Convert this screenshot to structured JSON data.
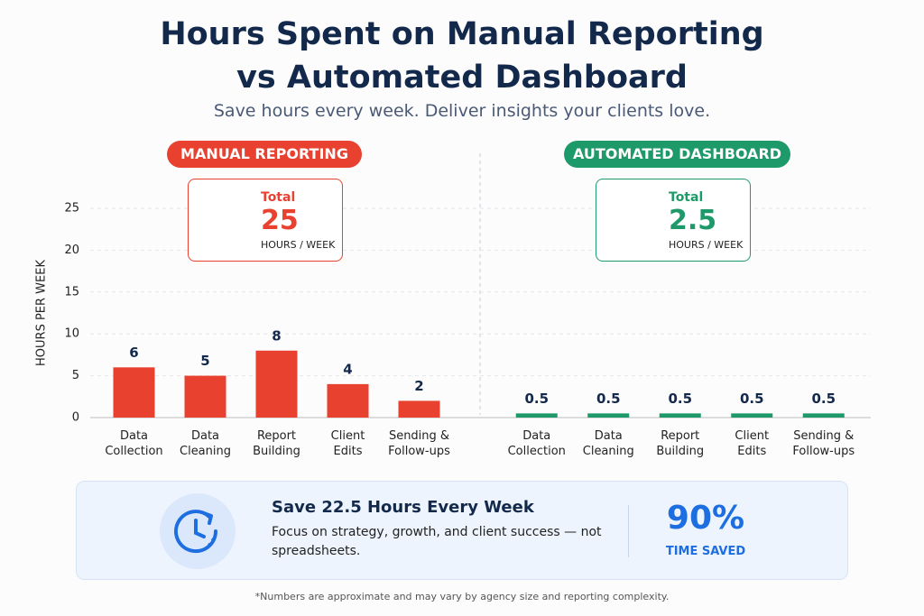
{
  "header": {
    "title": "Hours Spent on Manual Reporting vs Automated Dashboard",
    "subtitle": "Save hours every week. Deliver insights your clients love."
  },
  "chart_data": [
    {
      "type": "bar",
      "title": "MANUAL REPORTING",
      "y_label": "HOURS PER WEEK",
      "total_label": "Total",
      "total": 25,
      "total_unit": "HOURS / WEEK",
      "categories": [
        "Data Collection",
        "Data Cleaning",
        "Report Building",
        "Client Edits",
        "Sending & Follow-ups"
      ],
      "values": [
        6,
        5,
        8,
        4,
        2
      ],
      "color": "#e8412f",
      "ylim": [
        0,
        25
      ],
      "yticks": [
        0,
        5,
        10,
        15,
        20,
        25
      ],
      "grid": true
    },
    {
      "type": "bar",
      "title": "AUTOMATED DASHBOARD",
      "total_label": "Total",
      "total": 2.5,
      "total_unit": "HOURS / WEEK",
      "categories": [
        "Data Collection",
        "Data Cleaning",
        "Report Building",
        "Client Edits",
        "Sending & Follow-ups"
      ],
      "values": [
        0.5,
        0.5,
        0.5,
        0.5,
        0.5
      ],
      "color": "#1e9a6a",
      "ylim": [
        0,
        25
      ]
    }
  ],
  "callout": {
    "heading": "Save 22.5 Hours Every Week",
    "body": "Focus on strategy, growth, and client success — not spreadsheets.",
    "percent": "90%",
    "percent_label": "TIME SAVED"
  },
  "footnote": "*Numbers are approximate and may vary by agency size and reporting complexity."
}
